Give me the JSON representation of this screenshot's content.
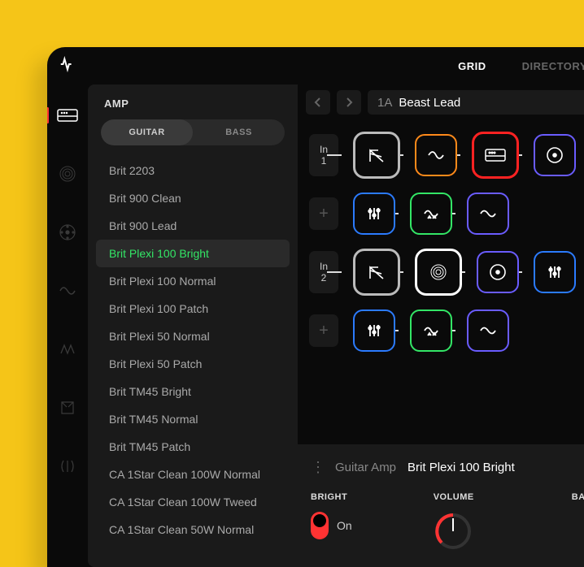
{
  "top_tabs": {
    "grid": "GRID",
    "directory": "DIRECTORY"
  },
  "sidebar": {
    "title": "AMP",
    "segments": {
      "guitar": "GUITAR",
      "bass": "BASS",
      "active": "guitar"
    },
    "items": [
      "Brit 2203",
      "Brit 900 Clean",
      "Brit 900 Lead",
      "Brit Plexi 100 Bright",
      "Brit Plexi 100 Normal",
      "Brit Plexi 100 Patch",
      "Brit Plexi 50 Normal",
      "Brit Plexi 50 Patch",
      "Brit TM45 Bright",
      "Brit TM45 Normal",
      "Brit TM45 Patch",
      "CA 1Star Clean 100W Normal",
      "CA 1Star Clean 100W Tweed",
      "CA 1Star Clean 50W Normal"
    ],
    "selected_index": 3
  },
  "iconrail": [
    "amp",
    "cab",
    "speaker",
    "wave",
    "distortion",
    "mod",
    "pitch"
  ],
  "preset": {
    "number": "1A",
    "name": "Beast Lead"
  },
  "grid": {
    "rows": [
      {
        "label_top": "In",
        "label_bottom": "1",
        "blocks": [
          {
            "icon": "wah",
            "color": "#bbbbbb",
            "big": true
          },
          {
            "icon": "dist",
            "color": "#ff8a1a"
          },
          {
            "icon": "amp",
            "color": "#ff2222",
            "big": true
          },
          {
            "icon": "cab",
            "color": "#6a5cff"
          }
        ]
      },
      {
        "label_plus": "+",
        "blocks": [
          {
            "icon": "eq",
            "color": "#2b7bff"
          },
          {
            "icon": "mod",
            "color": "#33e666"
          },
          {
            "icon": "delay",
            "color": "#6a5cff"
          }
        ]
      },
      {
        "label_top": "In",
        "label_bottom": "2",
        "blocks": [
          {
            "icon": "wah",
            "color": "#bbbbbb",
            "big": true
          },
          {
            "icon": "cab2",
            "color": "#ffffff",
            "big": true
          },
          {
            "icon": "cab",
            "color": "#6a5cff"
          },
          {
            "icon": "eq",
            "color": "#2b7bff"
          }
        ]
      },
      {
        "label_plus": "+",
        "blocks": [
          {
            "icon": "eq",
            "color": "#2b7bff"
          },
          {
            "icon": "mod",
            "color": "#33e666"
          },
          {
            "icon": "delay",
            "color": "#6a5cff"
          }
        ]
      }
    ]
  },
  "params_panel": {
    "type_label": "Guitar Amp",
    "name": "Brit Plexi 100 Bright",
    "params": [
      {
        "label": "BRIGHT",
        "kind": "toggle",
        "value": "On"
      },
      {
        "label": "VOLUME",
        "kind": "knob"
      },
      {
        "label": "BASS",
        "kind": "knob"
      }
    ]
  },
  "colors": {
    "bg": "#f5c518",
    "panel": "#1a1a1a",
    "app": "#0a0a0a",
    "accent": "#33e666",
    "red": "#ff3333"
  }
}
